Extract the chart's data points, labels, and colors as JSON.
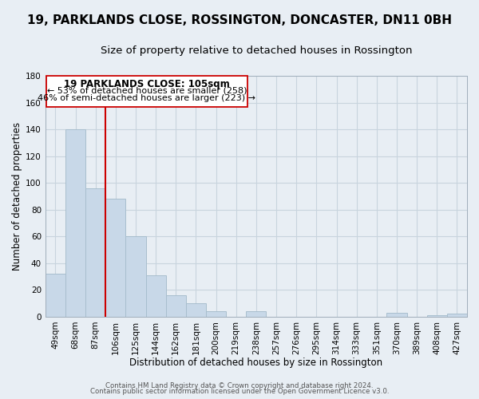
{
  "title": "19, PARKLANDS CLOSE, ROSSINGTON, DONCASTER, DN11 0BH",
  "subtitle": "Size of property relative to detached houses in Rossington",
  "xlabel": "Distribution of detached houses by size in Rossington",
  "ylabel": "Number of detached properties",
  "footer_line1": "Contains HM Land Registry data © Crown copyright and database right 2024.",
  "footer_line2": "Contains public sector information licensed under the Open Government Licence v3.0.",
  "bar_labels": [
    "49sqm",
    "68sqm",
    "87sqm",
    "106sqm",
    "125sqm",
    "144sqm",
    "162sqm",
    "181sqm",
    "200sqm",
    "219sqm",
    "238sqm",
    "257sqm",
    "276sqm",
    "295sqm",
    "314sqm",
    "333sqm",
    "351sqm",
    "370sqm",
    "389sqm",
    "408sqm",
    "427sqm"
  ],
  "bar_values": [
    32,
    140,
    96,
    88,
    60,
    31,
    16,
    10,
    4,
    0,
    4,
    0,
    0,
    0,
    0,
    0,
    0,
    3,
    0,
    1,
    2
  ],
  "bar_color": "#c8d8e8",
  "bar_edge_color": "#a8bece",
  "grid_color": "#c8d4de",
  "bg_color": "#e8eef4",
  "plot_bg_color": "#e8eef4",
  "annotation_box_color": "#ffffff",
  "annotation_border_color": "#cc0000",
  "vline_color": "#cc0000",
  "annotation_title": "19 PARKLANDS CLOSE: 105sqm",
  "annotation_line2": "← 53% of detached houses are smaller (258)",
  "annotation_line3": "46% of semi-detached houses are larger (223) →",
  "ylim": [
    0,
    180
  ],
  "yticks": [
    0,
    20,
    40,
    60,
    80,
    100,
    120,
    140,
    160,
    180
  ],
  "title_fontsize": 11,
  "subtitle_fontsize": 9.5,
  "axis_label_fontsize": 8.5,
  "tick_fontsize": 7.5,
  "annotation_title_fontsize": 8.5,
  "annotation_text_fontsize": 8,
  "footer_fontsize": 6.2
}
